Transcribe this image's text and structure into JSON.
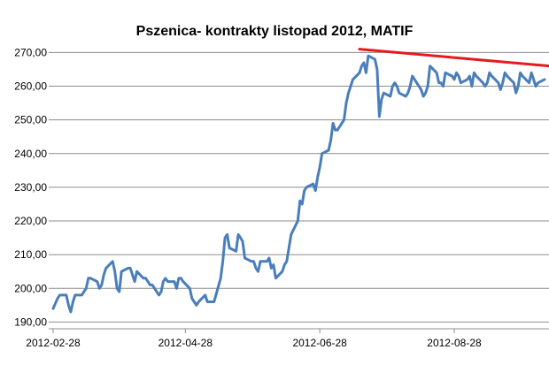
{
  "chart_data": {
    "type": "line",
    "title": "Pszenica- kontrakty listopad 2012, MATIF",
    "xlabel": "",
    "ylabel": "",
    "x_ticks": [
      "2012-02-28",
      "2012-04-28",
      "2012-06-28",
      "2012-08-28"
    ],
    "x_range": [
      "2012-02-28",
      "2012-10-10"
    ],
    "y_ticks": [
      "190,00",
      "200,00",
      "210,00",
      "220,00",
      "230,00",
      "240,00",
      "250,00",
      "260,00",
      "270,00"
    ],
    "y_tick_values": [
      190,
      200,
      210,
      220,
      230,
      240,
      250,
      260,
      270
    ],
    "ylim": [
      188,
      273
    ],
    "grid": "horizontal",
    "legend": "none",
    "series": [
      {
        "color": "#4a7ebb",
        "points": [
          [
            "2012-02-28",
            194
          ],
          [
            "2012-03-01",
            197
          ],
          [
            "2012-03-02",
            198
          ],
          [
            "2012-03-05",
            198
          ],
          [
            "2012-03-06",
            195
          ],
          [
            "2012-03-07",
            193
          ],
          [
            "2012-03-08",
            196
          ],
          [
            "2012-03-09",
            198
          ],
          [
            "2012-03-12",
            198
          ],
          [
            "2012-03-13",
            199
          ],
          [
            "2012-03-14",
            200
          ],
          [
            "2012-03-15",
            203
          ],
          [
            "2012-03-16",
            203
          ],
          [
            "2012-03-19",
            202
          ],
          [
            "2012-03-20",
            200
          ],
          [
            "2012-03-21",
            201
          ],
          [
            "2012-03-22",
            204
          ],
          [
            "2012-03-23",
            206
          ],
          [
            "2012-03-26",
            208
          ],
          [
            "2012-03-27",
            205
          ],
          [
            "2012-03-28",
            200
          ],
          [
            "2012-03-29",
            199
          ],
          [
            "2012-03-30",
            205
          ],
          [
            "2012-04-02",
            206
          ],
          [
            "2012-04-03",
            206
          ],
          [
            "2012-04-04",
            204
          ],
          [
            "2012-04-05",
            202
          ],
          [
            "2012-04-06",
            205
          ],
          [
            "2012-04-09",
            203
          ],
          [
            "2012-04-10",
            203
          ],
          [
            "2012-04-11",
            202
          ],
          [
            "2012-04-12",
            201
          ],
          [
            "2012-04-13",
            201
          ],
          [
            "2012-04-16",
            198
          ],
          [
            "2012-04-17",
            199
          ],
          [
            "2012-04-18",
            202
          ],
          [
            "2012-04-19",
            203
          ],
          [
            "2012-04-20",
            202
          ],
          [
            "2012-04-23",
            202
          ],
          [
            "2012-04-24",
            200
          ],
          [
            "2012-04-25",
            203
          ],
          [
            "2012-04-26",
            203
          ],
          [
            "2012-04-27",
            202
          ],
          [
            "2012-04-30",
            200
          ],
          [
            "2012-05-01",
            197
          ],
          [
            "2012-05-02",
            196
          ],
          [
            "2012-05-03",
            195
          ],
          [
            "2012-05-04",
            196
          ],
          [
            "2012-05-07",
            198
          ],
          [
            "2012-05-08",
            196
          ],
          [
            "2012-05-09",
            196
          ],
          [
            "2012-05-10",
            196
          ],
          [
            "2012-05-11",
            196
          ],
          [
            "2012-05-14",
            203
          ],
          [
            "2012-05-15",
            208
          ],
          [
            "2012-05-16",
            215
          ],
          [
            "2012-05-17",
            216
          ],
          [
            "2012-05-18",
            212
          ],
          [
            "2012-05-21",
            211
          ],
          [
            "2012-05-22",
            216
          ],
          [
            "2012-05-23",
            215
          ],
          [
            "2012-05-24",
            214
          ],
          [
            "2012-05-25",
            209
          ],
          [
            "2012-05-28",
            208
          ],
          [
            "2012-05-29",
            208
          ],
          [
            "2012-05-30",
            206
          ],
          [
            "2012-05-31",
            205
          ],
          [
            "2012-06-01",
            208
          ],
          [
            "2012-06-04",
            208
          ],
          [
            "2012-06-05",
            209
          ],
          [
            "2012-06-06",
            206
          ],
          [
            "2012-06-07",
            207
          ],
          [
            "2012-06-08",
            203
          ],
          [
            "2012-06-11",
            205
          ],
          [
            "2012-06-12",
            207
          ],
          [
            "2012-06-13",
            208
          ],
          [
            "2012-06-14",
            212
          ],
          [
            "2012-06-15",
            216
          ],
          [
            "2012-06-18",
            220
          ],
          [
            "2012-06-19",
            226
          ],
          [
            "2012-06-20",
            225
          ],
          [
            "2012-06-21",
            229
          ],
          [
            "2012-06-22",
            230
          ],
          [
            "2012-06-25",
            231
          ],
          [
            "2012-06-26",
            229
          ],
          [
            "2012-06-27",
            233
          ],
          [
            "2012-06-28",
            236
          ],
          [
            "2012-06-29",
            240
          ],
          [
            "2012-07-02",
            241
          ],
          [
            "2012-07-03",
            244
          ],
          [
            "2012-07-04",
            249
          ],
          [
            "2012-07-05",
            247
          ],
          [
            "2012-07-06",
            247
          ],
          [
            "2012-07-09",
            250
          ],
          [
            "2012-07-10",
            255
          ],
          [
            "2012-07-11",
            258
          ],
          [
            "2012-07-12",
            260
          ],
          [
            "2012-07-13",
            262
          ],
          [
            "2012-07-16",
            264
          ],
          [
            "2012-07-17",
            266
          ],
          [
            "2012-07-18",
            267
          ],
          [
            "2012-07-19",
            264
          ],
          [
            "2012-07-20",
            269
          ],
          [
            "2012-07-23",
            268
          ],
          [
            "2012-07-24",
            265
          ],
          [
            "2012-07-25",
            251
          ],
          [
            "2012-07-26",
            256
          ],
          [
            "2012-07-27",
            258
          ],
          [
            "2012-07-30",
            257
          ],
          [
            "2012-07-31",
            260
          ],
          [
            "2012-08-01",
            261
          ],
          [
            "2012-08-02",
            260
          ],
          [
            "2012-08-03",
            258
          ],
          [
            "2012-08-06",
            257
          ],
          [
            "2012-08-07",
            258
          ],
          [
            "2012-08-08",
            260
          ],
          [
            "2012-08-09",
            263
          ],
          [
            "2012-08-10",
            262
          ],
          [
            "2012-08-13",
            259
          ],
          [
            "2012-08-14",
            257
          ],
          [
            "2012-08-15",
            258
          ],
          [
            "2012-08-16",
            260
          ],
          [
            "2012-08-17",
            266
          ],
          [
            "2012-08-20",
            264
          ],
          [
            "2012-08-21",
            261
          ],
          [
            "2012-08-22",
            261
          ],
          [
            "2012-08-23",
            260
          ],
          [
            "2012-08-24",
            264
          ],
          [
            "2012-08-27",
            263
          ],
          [
            "2012-08-28",
            262
          ],
          [
            "2012-08-29",
            264
          ],
          [
            "2012-08-30",
            263
          ],
          [
            "2012-08-31",
            261
          ],
          [
            "2012-09-03",
            262
          ],
          [
            "2012-09-04",
            263
          ],
          [
            "2012-09-05",
            260
          ],
          [
            "2012-09-06",
            264
          ],
          [
            "2012-09-07",
            263
          ],
          [
            "2012-09-10",
            261
          ],
          [
            "2012-09-11",
            260
          ],
          [
            "2012-09-12",
            261
          ],
          [
            "2012-09-13",
            264
          ],
          [
            "2012-09-14",
            263
          ],
          [
            "2012-09-17",
            261
          ],
          [
            "2012-09-18",
            259
          ],
          [
            "2012-09-19",
            261
          ],
          [
            "2012-09-20",
            264
          ],
          [
            "2012-09-21",
            263
          ],
          [
            "2012-09-24",
            261
          ],
          [
            "2012-09-25",
            258
          ],
          [
            "2012-09-26",
            260
          ],
          [
            "2012-09-27",
            264
          ],
          [
            "2012-09-28",
            263
          ],
          [
            "2012-10-01",
            261
          ],
          [
            "2012-10-02",
            264
          ],
          [
            "2012-10-03",
            262
          ],
          [
            "2012-10-04",
            260
          ],
          [
            "2012-10-05",
            261
          ],
          [
            "2012-10-08",
            262
          ]
        ]
      }
    ],
    "trendline": {
      "color": "#e8181e",
      "points": [
        [
          "2012-07-16",
          271
        ],
        [
          "2012-10-10",
          266
        ]
      ]
    }
  }
}
